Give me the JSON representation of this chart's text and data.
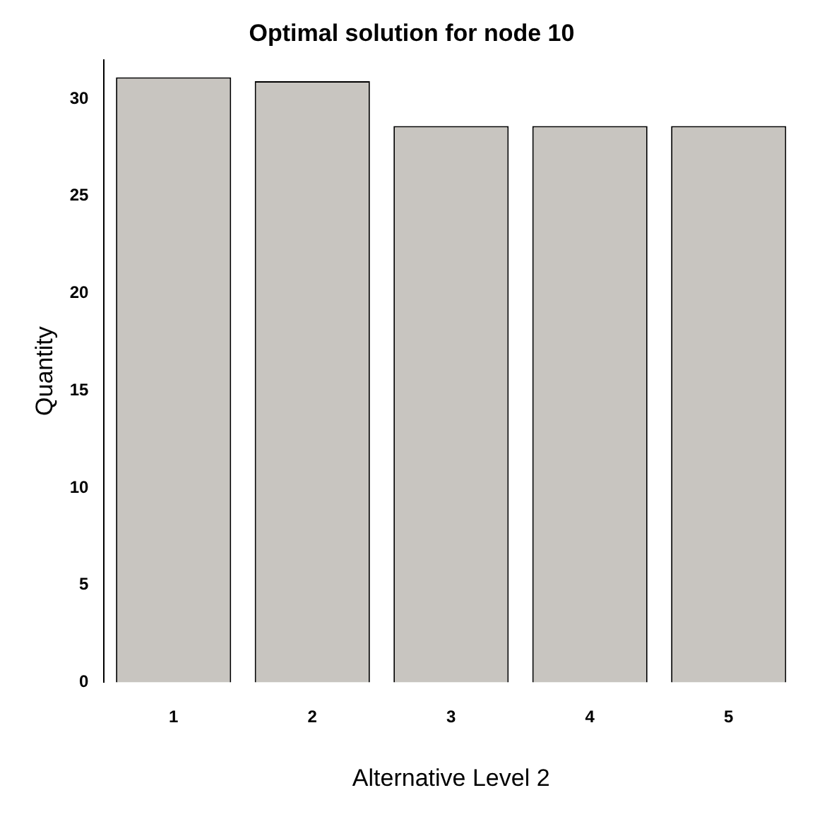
{
  "chart_data": {
    "type": "bar",
    "title": "Optimal solution for node 10",
    "xlabel": "Alternative Level 2",
    "ylabel": "Quantity",
    "categories": [
      "1",
      "2",
      "3",
      "4",
      "5"
    ],
    "values": [
      31.1,
      30.9,
      28.6,
      28.6,
      28.6
    ],
    "color": "#c8c5c0",
    "ylim": [
      0,
      32
    ],
    "yticks": [
      0,
      5,
      10,
      15,
      20,
      25,
      30
    ],
    "grid": false,
    "legend": false
  }
}
